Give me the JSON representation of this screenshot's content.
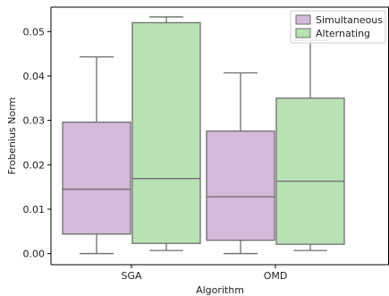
{
  "chart_data": {
    "type": "box",
    "xlabel": "Algorithm",
    "ylabel": "Frobenius Norm",
    "ylim": [
      -0.0025,
      0.0555
    ],
    "yticks": [
      0.0,
      0.01,
      0.02,
      0.03,
      0.04,
      0.05
    ],
    "ytick_labels": [
      "0.00",
      "0.01",
      "0.02",
      "0.03",
      "0.04",
      "0.05"
    ],
    "categories": [
      "SGA",
      "OMD"
    ],
    "legend_position": "top-right",
    "series": [
      {
        "name": "Simultaneous",
        "color": "#d3b9da",
        "boxes": [
          {
            "category": "SGA",
            "whisker_low": 0.0,
            "q1": 0.0044,
            "median": 0.0145,
            "q3": 0.0296,
            "whisker_high": 0.0443
          },
          {
            "category": "OMD",
            "whisker_low": 0.0,
            "q1": 0.003,
            "median": 0.0128,
            "q3": 0.0276,
            "whisker_high": 0.0407
          }
        ]
      },
      {
        "name": "Alternating",
        "color": "#b9e2b4",
        "boxes": [
          {
            "category": "SGA",
            "whisker_low": 0.0007,
            "q1": 0.0023,
            "median": 0.0169,
            "q3": 0.052,
            "whisker_high": 0.0533
          },
          {
            "category": "OMD",
            "whisker_low": 0.0007,
            "q1": 0.0021,
            "median": 0.0163,
            "q3": 0.035,
            "whisker_high": 0.048
          }
        ]
      }
    ]
  }
}
